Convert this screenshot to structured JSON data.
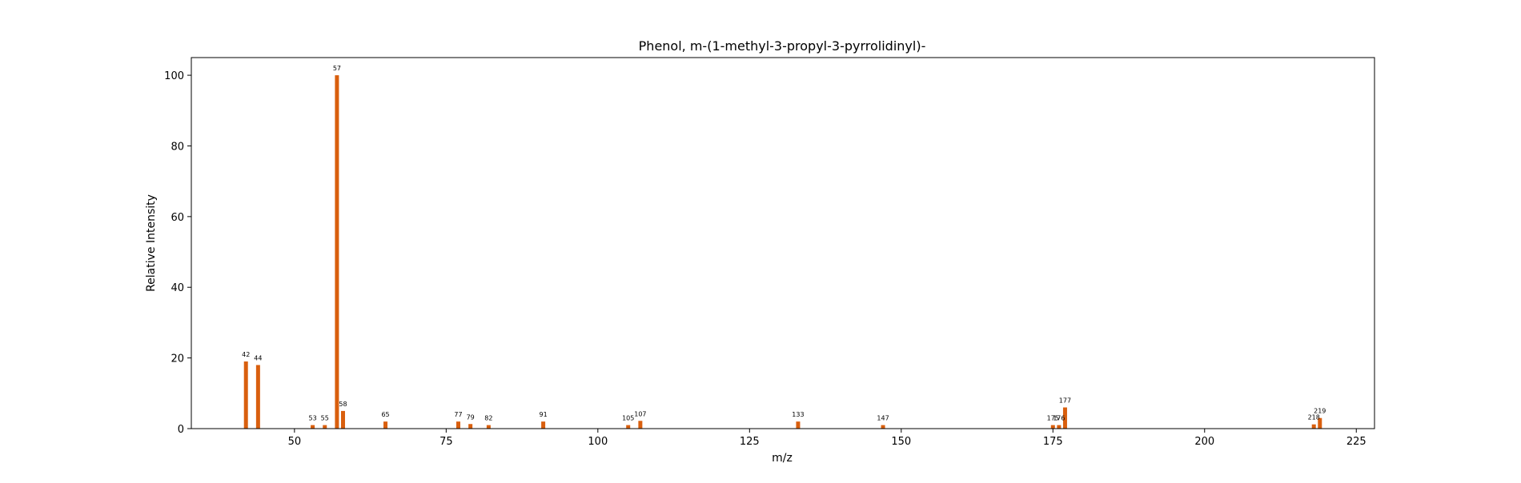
{
  "chart_data": {
    "type": "bar",
    "title": "Phenol, m-(1-methyl-3-propyl-3-pyrrolidinyl)-",
    "xlabel": "m/z",
    "ylabel": "Relative Intensity",
    "xlim": [
      33,
      228
    ],
    "ylim": [
      0,
      105
    ],
    "x_ticks": [
      50,
      75,
      100,
      125,
      150,
      175,
      200,
      225
    ],
    "y_ticks": [
      0,
      20,
      40,
      60,
      80,
      100
    ],
    "grid": false,
    "bar_color": "#d95f0e",
    "peaks": [
      {
        "mz": 42,
        "intensity": 19,
        "label": "42"
      },
      {
        "mz": 44,
        "intensity": 18,
        "label": "44"
      },
      {
        "mz": 53,
        "intensity": 1,
        "label": "53"
      },
      {
        "mz": 55,
        "intensity": 1,
        "label": "55"
      },
      {
        "mz": 57,
        "intensity": 100,
        "label": "57"
      },
      {
        "mz": 58,
        "intensity": 5,
        "label": "58"
      },
      {
        "mz": 65,
        "intensity": 2,
        "label": "65"
      },
      {
        "mz": 77,
        "intensity": 2,
        "label": "77"
      },
      {
        "mz": 79,
        "intensity": 1.3,
        "label": "79"
      },
      {
        "mz": 82,
        "intensity": 1,
        "label": "82"
      },
      {
        "mz": 91,
        "intensity": 2,
        "label": "91"
      },
      {
        "mz": 105,
        "intensity": 1,
        "label": "105"
      },
      {
        "mz": 107,
        "intensity": 2.2,
        "label": "107"
      },
      {
        "mz": 133,
        "intensity": 2,
        "label": "133"
      },
      {
        "mz": 147,
        "intensity": 1,
        "label": "147"
      },
      {
        "mz": 175,
        "intensity": 1,
        "label": "175"
      },
      {
        "mz": 176,
        "intensity": 1,
        "label": "176"
      },
      {
        "mz": 177,
        "intensity": 6,
        "label": "177"
      },
      {
        "mz": 218,
        "intensity": 1.2,
        "label": "218"
      },
      {
        "mz": 219,
        "intensity": 3,
        "label": "219"
      }
    ]
  }
}
